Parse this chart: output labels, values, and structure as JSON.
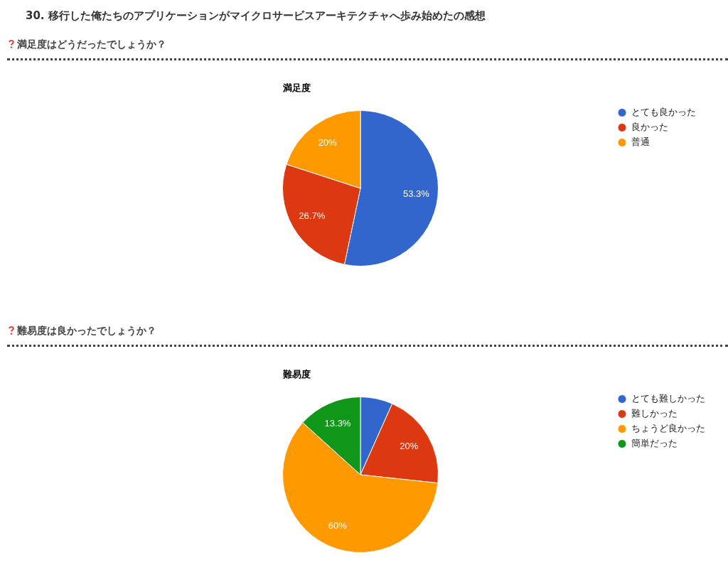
{
  "chart_data": [
    {
      "type": "pie",
      "annotations": [
        "30. 移行した俺たちのアプリケーションがマイクロサービスアーキテクチャへ歩み始めたの感想"
      ],
      "subtitle": "満足度はどうだったでしょうか？",
      "title": "満足度",
      "categories": [
        "とても良かった",
        "良かった",
        "普通"
      ],
      "values": [
        53.3,
        26.7,
        20
      ],
      "colors": [
        "#3366cc",
        "#dc3912",
        "#ff9900"
      ],
      "value_labels": [
        "53.3%",
        "26.7%",
        "20%"
      ],
      "legend": "top right"
    },
    {
      "type": "pie",
      "subtitle": "難易度は良かったでしょうか？",
      "title": "難易度",
      "categories": [
        "とても難しかった",
        "難しかった",
        "ちょうど良かった",
        "簡単だった"
      ],
      "values": [
        6.7,
        20,
        60,
        13.3
      ],
      "colors": [
        "#3366cc",
        "#dc3912",
        "#ff9900",
        "#109618"
      ],
      "value_labels": [
        null,
        "20%",
        "60%",
        "13.3%"
      ],
      "legend": "top right"
    }
  ]
}
